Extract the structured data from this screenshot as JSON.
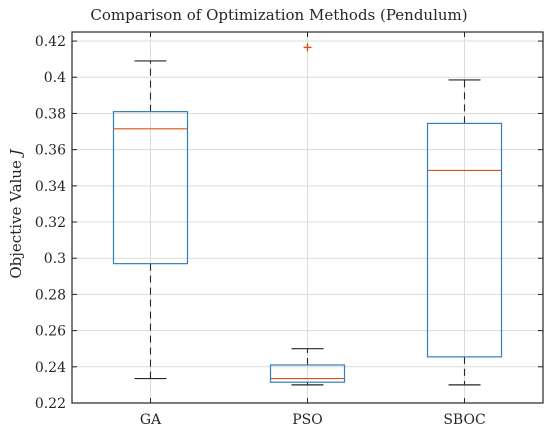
{
  "chart_data": {
    "type": "box",
    "title": "Comparison of Optimization Methods (Pendulum)",
    "xlabel": "",
    "ylabel": "Objective Value",
    "ylabel_symbol": "J",
    "categories": [
      "GA",
      "PSO",
      "SBOC"
    ],
    "ylim": [
      0.22,
      0.425
    ],
    "yticks": [
      0.22,
      0.24,
      0.26,
      0.28,
      0.3,
      0.32,
      0.34,
      0.36,
      0.38,
      0.4,
      0.42
    ],
    "ytick_labels": [
      "0.22",
      "0.24",
      "0.26",
      "0.28",
      "0.3",
      "0.32",
      "0.34",
      "0.36",
      "0.38",
      "0.4",
      "0.42"
    ],
    "grid": true,
    "boxes": [
      {
        "category": "GA",
        "whisker_low": 0.2335,
        "q1": 0.297,
        "median": 0.3715,
        "q3": 0.381,
        "whisker_high": 0.409,
        "outliers": []
      },
      {
        "category": "PSO",
        "whisker_low": 0.23,
        "q1": 0.2315,
        "median": 0.2335,
        "q3": 0.241,
        "whisker_high": 0.25,
        "outliers": [
          0.4165
        ]
      },
      {
        "category": "SBOC",
        "whisker_low": 0.23,
        "q1": 0.2455,
        "median": 0.3485,
        "q3": 0.3745,
        "whisker_high": 0.3985,
        "outliers": []
      }
    ],
    "colors": {
      "box": "#2f7fc1",
      "median": "#d95319",
      "outlier": "#d95319",
      "whisker": "#262626",
      "grid": "#dcdcdc"
    }
  }
}
